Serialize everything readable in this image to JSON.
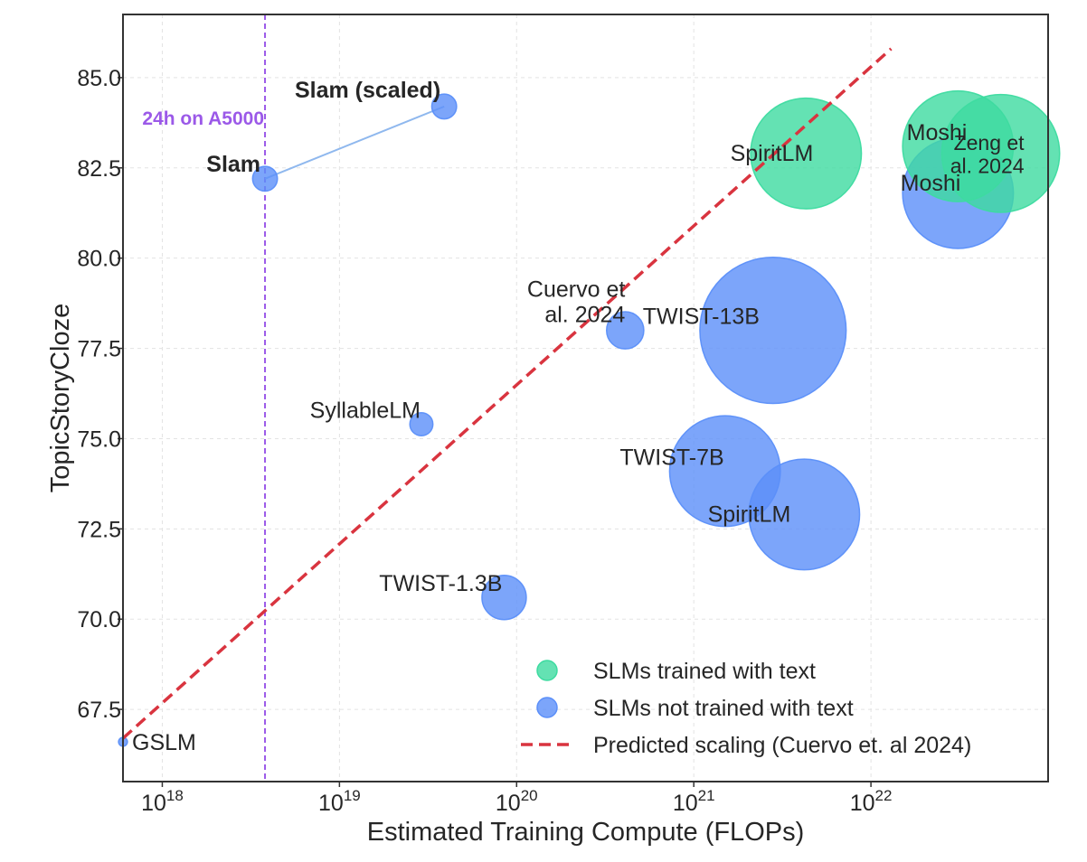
{
  "chart_data": {
    "type": "scatter",
    "xlabel": "Estimated Training Compute (FLOPs)",
    "ylabel": "TopicStoryCloze",
    "x_scale": "log",
    "xlim": [
      6e+17,
      1e+23
    ],
    "ylim": [
      65.5,
      86.75
    ],
    "x_ticks": [
      {
        "value": 1e+18,
        "base": "10",
        "exp": "18"
      },
      {
        "value": 1e+19,
        "base": "10",
        "exp": "19"
      },
      {
        "value": 1e+20,
        "base": "10",
        "exp": "20"
      },
      {
        "value": 1e+21,
        "base": "10",
        "exp": "21"
      },
      {
        "value": 1e+22,
        "base": "10",
        "exp": "22"
      }
    ],
    "y_ticks": [
      67.5,
      70.0,
      72.5,
      75.0,
      77.5,
      80.0,
      82.5,
      85.0
    ],
    "grid": true,
    "colors": {
      "with_text": "#3ddba0",
      "without_text": "#5b8ff9",
      "scaling": "#d9343f",
      "compute_line": "#9b59e8",
      "connector": "#8fb8ee"
    },
    "vline": {
      "x": 3.8e+18,
      "label": "24h on A5000"
    },
    "connector": {
      "from": [
        3.8e+18,
        82.2
      ],
      "to": [
        3.9e+19,
        84.2
      ]
    },
    "predicted_scaling": {
      "x": [
        6e+17,
        1.3e+22
      ],
      "y": [
        66.7,
        85.8
      ]
    },
    "points": [
      {
        "label": "GSLM",
        "x": 6e+17,
        "y": 66.6,
        "size": 1,
        "group": "without_text",
        "bold": false
      },
      {
        "label": "Slam",
        "x": 3.8e+18,
        "y": 82.2,
        "size": 2.8,
        "group": "without_text",
        "bold": true
      },
      {
        "label": "Slam (scaled)",
        "x": 3.9e+19,
        "y": 84.2,
        "size": 2.8,
        "group": "without_text",
        "bold": true
      },
      {
        "label": "SyllableLM",
        "x": 2.9e+19,
        "y": 75.4,
        "size": 2.6,
        "group": "without_text",
        "bold": false
      },
      {
        "label": "TWIST-1.3B",
        "x": 8.5e+19,
        "y": 70.6,
        "size": 5,
        "group": "without_text",
        "bold": false
      },
      {
        "label": "Cuervo et al. 2024",
        "x": 4.1e+20,
        "y": 78.0,
        "size": 4.2,
        "group": "without_text",
        "bold": false
      },
      {
        "label": "TWIST-7B",
        "x": 1.5e+21,
        "y": 74.1,
        "size": 12.5,
        "group": "without_text",
        "bold": false
      },
      {
        "label": "TWIST-13B",
        "x": 2.8e+21,
        "y": 78.0,
        "size": 16.5,
        "group": "without_text",
        "bold": false
      },
      {
        "label": "SpiritLM",
        "x": 4.2e+21,
        "y": 72.9,
        "size": 12.5,
        "group": "without_text",
        "bold": false
      },
      {
        "label": "Moshi",
        "x": 3.1e+22,
        "y": 81.8,
        "size": 12.5,
        "group": "without_text",
        "bold": false
      },
      {
        "label": "SpiritLM",
        "x": 4.3e+21,
        "y": 82.9,
        "size": 12.5,
        "group": "with_text",
        "bold": false
      },
      {
        "label": "Moshi",
        "x": 3.1e+22,
        "y": 83.1,
        "size": 12.5,
        "group": "with_text",
        "bold": false
      },
      {
        "label": "Zeng et al. 2024",
        "x": 5.4e+22,
        "y": 82.9,
        "size": 13.3,
        "group": "with_text",
        "bold": false
      }
    ],
    "legend": {
      "placement": "lower-right",
      "items": [
        {
          "label": "SLMs trained with text",
          "kind": "marker",
          "group": "with_text"
        },
        {
          "label": "SLMs not trained with text",
          "kind": "marker",
          "group": "without_text"
        },
        {
          "label": "Predicted scaling (Cuervo et. al 2024)",
          "kind": "dashed",
          "group": "scaling"
        }
      ]
    }
  }
}
